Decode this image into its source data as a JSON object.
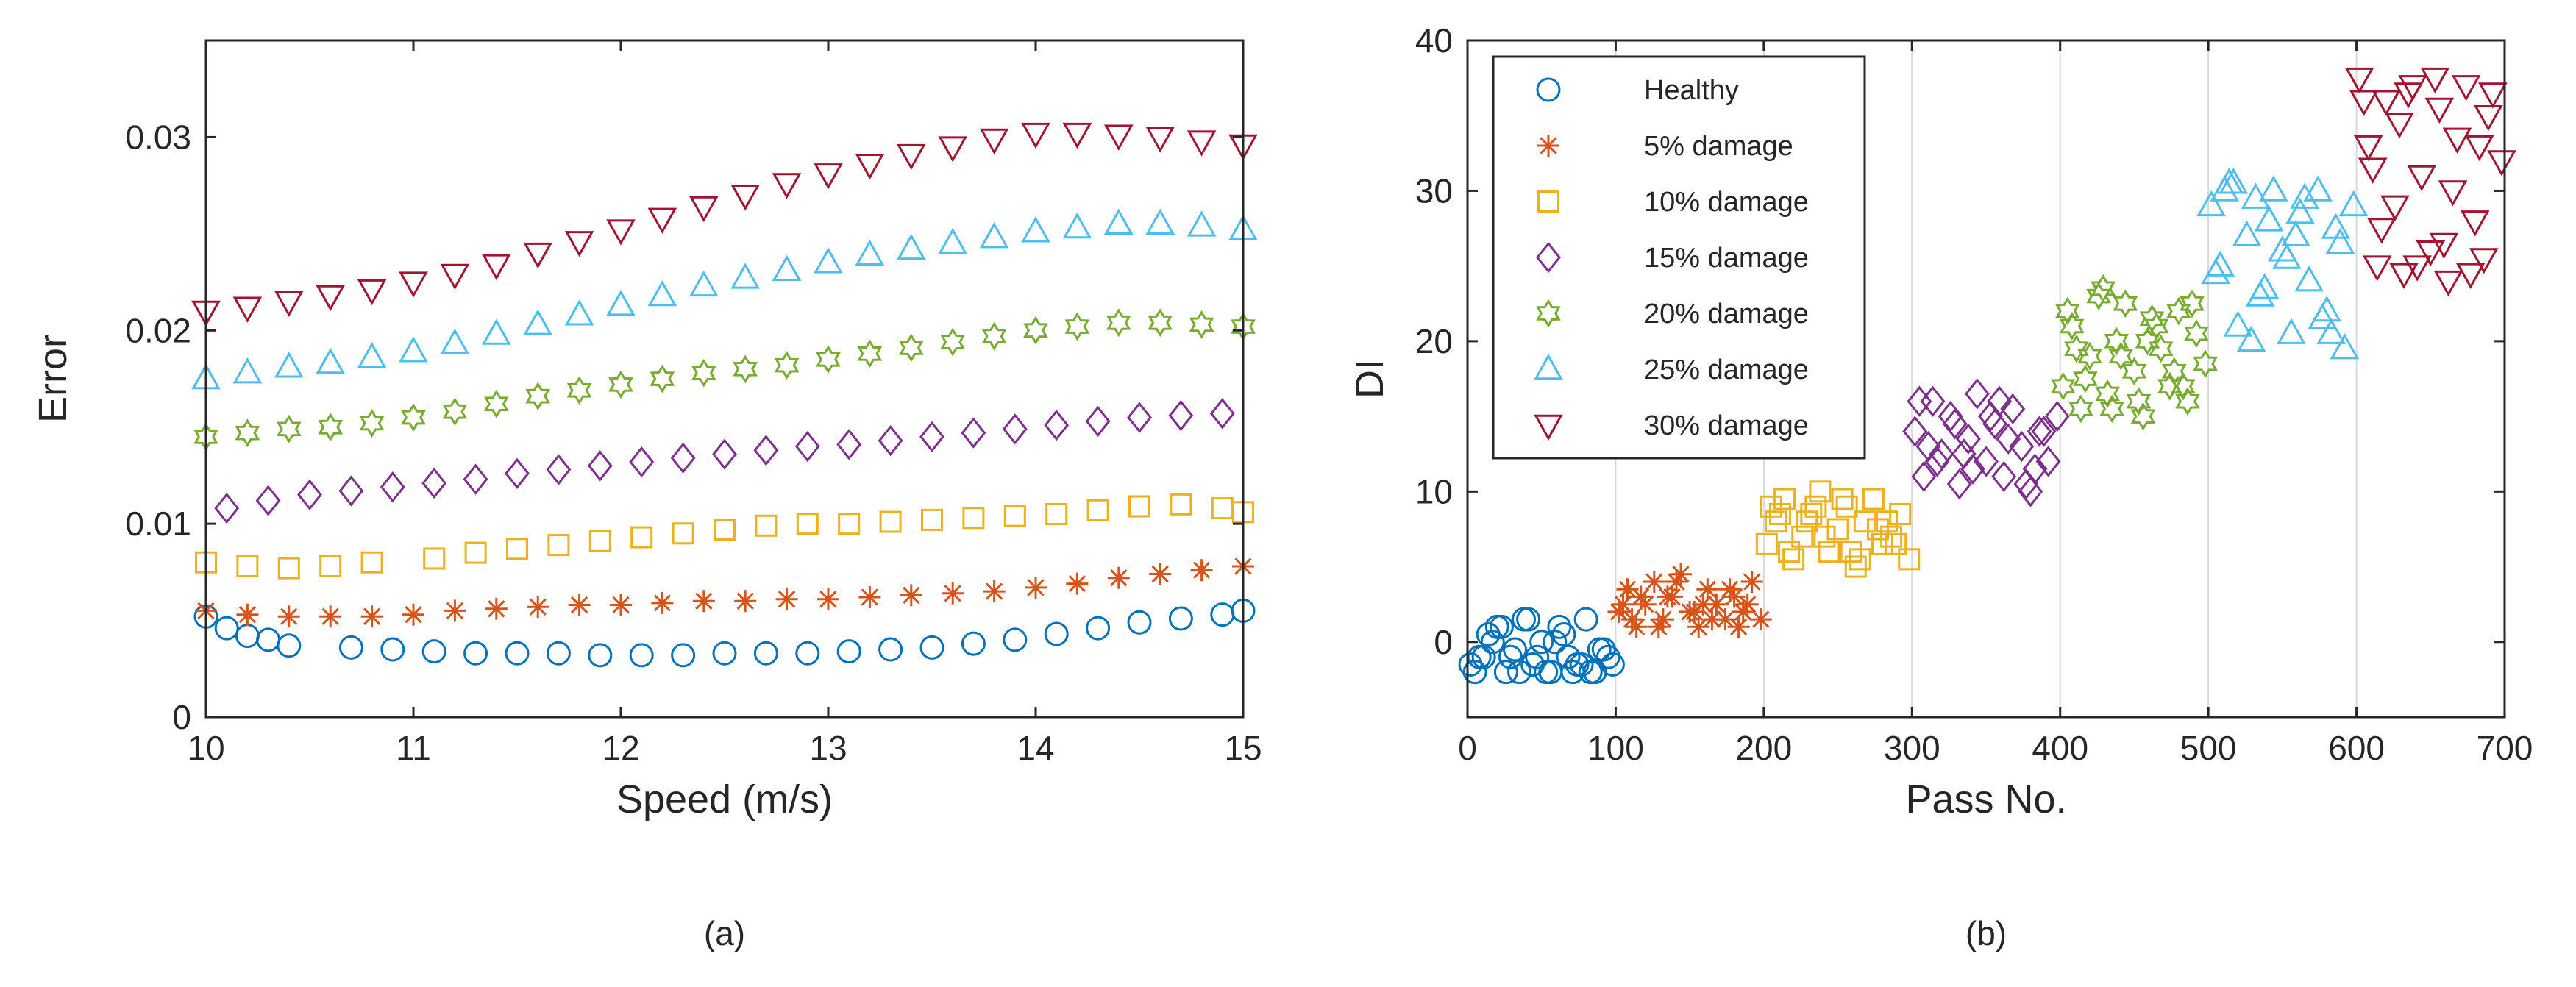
{
  "colors": {
    "healthy": "#0072BD",
    "d5": "#D95319",
    "d10": "#EDB120",
    "d15": "#7E2F8E",
    "d20": "#77AC30",
    "d25": "#4DBEEE",
    "d30": "#A2142F",
    "axis": "#262626",
    "grid": "#d9d9d9"
  },
  "chart_data": [
    {
      "id": "a",
      "type": "scatter",
      "caption": "(a)",
      "xlabel": "Speed (m/s)",
      "ylabel": "Error",
      "xlim": [
        10,
        15
      ],
      "ylim": [
        0,
        0.035
      ],
      "xticks": [
        10,
        11,
        12,
        13,
        14,
        15
      ],
      "xtick_labels": [
        "10",
        "11",
        "12",
        "13",
        "14",
        "15"
      ],
      "yticks": [
        0,
        0.01,
        0.02,
        0.03
      ],
      "ytick_labels": [
        "0",
        "0.01",
        "0.02",
        "0.03"
      ],
      "grid": false,
      "legend": "none",
      "series": [
        {
          "name": "Healthy",
          "marker": "circle",
          "color_key": "healthy",
          "x": [
            10.0,
            10.1,
            10.2,
            10.3,
            10.4,
            10.7,
            10.9,
            11.1,
            11.3,
            11.5,
            11.7,
            11.9,
            12.1,
            12.3,
            12.5,
            12.7,
            12.9,
            13.1,
            13.3,
            13.5,
            13.7,
            13.9,
            14.1,
            14.3,
            14.5,
            14.7,
            14.9,
            15.0
          ],
          "y": [
            0.0052,
            0.0046,
            0.0042,
            0.004,
            0.0037,
            0.0036,
            0.0035,
            0.0034,
            0.0033,
            0.0033,
            0.0033,
            0.0032,
            0.0032,
            0.0032,
            0.0033,
            0.0033,
            0.0033,
            0.0034,
            0.0035,
            0.0036,
            0.0038,
            0.004,
            0.0043,
            0.0046,
            0.0049,
            0.0051,
            0.0053,
            0.0055
          ]
        },
        {
          "name": "5% damage",
          "marker": "asterisk",
          "color_key": "d5",
          "x": [
            10.0,
            10.2,
            10.4,
            10.6,
            10.8,
            11.0,
            11.2,
            11.4,
            11.6,
            11.8,
            12.0,
            12.2,
            12.4,
            12.6,
            12.8,
            13.0,
            13.2,
            13.4,
            13.6,
            13.8,
            14.0,
            14.2,
            14.4,
            14.6,
            14.8,
            15.0
          ],
          "y": [
            0.0055,
            0.0053,
            0.0052,
            0.0052,
            0.0052,
            0.0053,
            0.0055,
            0.0056,
            0.0057,
            0.0058,
            0.0058,
            0.0059,
            0.006,
            0.006,
            0.0061,
            0.0061,
            0.0062,
            0.0063,
            0.0064,
            0.0065,
            0.0067,
            0.0069,
            0.0072,
            0.0074,
            0.0076,
            0.0078
          ]
        },
        {
          "name": "10% damage",
          "marker": "square",
          "color_key": "d10",
          "x": [
            10.0,
            10.2,
            10.4,
            10.6,
            10.8,
            11.1,
            11.3,
            11.5,
            11.7,
            11.9,
            12.1,
            12.3,
            12.5,
            12.7,
            12.9,
            13.1,
            13.3,
            13.5,
            13.7,
            13.9,
            14.1,
            14.3,
            14.5,
            14.7,
            14.9,
            15.0
          ],
          "y": [
            0.008,
            0.0078,
            0.0077,
            0.0078,
            0.008,
            0.0082,
            0.0085,
            0.0087,
            0.0089,
            0.0091,
            0.0093,
            0.0095,
            0.0097,
            0.0099,
            0.01,
            0.01,
            0.0101,
            0.0102,
            0.0103,
            0.0104,
            0.0105,
            0.0107,
            0.0109,
            0.011,
            0.0108,
            0.0106
          ]
        },
        {
          "name": "15% damage",
          "marker": "diamond",
          "color_key": "d15",
          "x": [
            10.1,
            10.3,
            10.5,
            10.7,
            10.9,
            11.1,
            11.3,
            11.5,
            11.7,
            11.9,
            12.1,
            12.3,
            12.5,
            12.7,
            12.9,
            13.1,
            13.3,
            13.5,
            13.7,
            13.9,
            14.1,
            14.3,
            14.5,
            14.7,
            14.9
          ],
          "y": [
            0.0108,
            0.0112,
            0.0115,
            0.0117,
            0.0119,
            0.0121,
            0.0123,
            0.0126,
            0.0128,
            0.013,
            0.0132,
            0.0134,
            0.0136,
            0.0138,
            0.014,
            0.0141,
            0.0143,
            0.0145,
            0.0147,
            0.0149,
            0.0151,
            0.0153,
            0.0155,
            0.0156,
            0.0157
          ]
        },
        {
          "name": "20% damage",
          "marker": "hexagram",
          "color_key": "d20",
          "x": [
            10.0,
            10.2,
            10.4,
            10.6,
            10.8,
            11.0,
            11.2,
            11.4,
            11.6,
            11.8,
            12.0,
            12.2,
            12.4,
            12.6,
            12.8,
            13.0,
            13.2,
            13.4,
            13.6,
            13.8,
            14.0,
            14.2,
            14.4,
            14.6,
            14.8,
            15.0
          ],
          "y": [
            0.0145,
            0.0147,
            0.0149,
            0.015,
            0.0152,
            0.0155,
            0.0158,
            0.0162,
            0.0166,
            0.0169,
            0.0172,
            0.0175,
            0.0178,
            0.018,
            0.0182,
            0.0185,
            0.0188,
            0.0191,
            0.0194,
            0.0197,
            0.02,
            0.0202,
            0.0204,
            0.0204,
            0.0203,
            0.0202
          ]
        },
        {
          "name": "25% damage",
          "marker": "triangle-up",
          "color_key": "d25",
          "x": [
            10.0,
            10.2,
            10.4,
            10.6,
            10.8,
            11.0,
            11.2,
            11.4,
            11.6,
            11.8,
            12.0,
            12.2,
            12.4,
            12.6,
            12.8,
            13.0,
            13.2,
            13.4,
            13.6,
            13.8,
            14.0,
            14.2,
            14.4,
            14.6,
            14.8,
            15.0
          ],
          "y": [
            0.0175,
            0.0178,
            0.0181,
            0.0183,
            0.0186,
            0.0189,
            0.0193,
            0.0198,
            0.0203,
            0.0208,
            0.0213,
            0.0218,
            0.0223,
            0.0227,
            0.0231,
            0.0235,
            0.0239,
            0.0242,
            0.0245,
            0.0248,
            0.0251,
            0.0253,
            0.0255,
            0.0255,
            0.0254,
            0.0252
          ]
        },
        {
          "name": "30% damage",
          "marker": "triangle-down",
          "color_key": "d30",
          "x": [
            10.0,
            10.2,
            10.4,
            10.6,
            10.8,
            11.0,
            11.2,
            11.4,
            11.6,
            11.8,
            12.0,
            12.2,
            12.4,
            12.6,
            12.8,
            13.0,
            13.2,
            13.4,
            13.6,
            13.8,
            14.0,
            14.2,
            14.4,
            14.6,
            14.8,
            15.0
          ],
          "y": [
            0.021,
            0.0212,
            0.0215,
            0.0218,
            0.0221,
            0.0225,
            0.0229,
            0.0234,
            0.024,
            0.0246,
            0.0252,
            0.0258,
            0.0264,
            0.027,
            0.0276,
            0.0281,
            0.0286,
            0.0291,
            0.0295,
            0.0299,
            0.0302,
            0.0302,
            0.0301,
            0.03,
            0.0298,
            0.0296
          ]
        }
      ]
    },
    {
      "id": "b",
      "type": "scatter",
      "caption": "(b)",
      "xlabel": "Pass No.",
      "ylabel": "DI",
      "xlim": [
        0,
        700
      ],
      "ylim": [
        -5,
        40
      ],
      "xticks": [
        0,
        100,
        200,
        300,
        400,
        500,
        600,
        700
      ],
      "xtick_labels": [
        "0",
        "100",
        "200",
        "300",
        "400",
        "500",
        "600",
        "700"
      ],
      "yticks": [
        0,
        10,
        20,
        30,
        40
      ],
      "ytick_labels": [
        "0",
        "10",
        "20",
        "30",
        "40"
      ],
      "grid": "vertical",
      "legend": "top-left",
      "series": [
        {
          "name": "Healthy",
          "marker": "circle",
          "color_key": "healthy",
          "x": [
            2,
            8,
            14,
            20,
            26,
            32,
            38,
            44,
            50,
            56,
            62,
            68,
            74,
            80,
            86,
            92,
            98,
            5,
            17,
            29,
            41,
            53,
            65,
            77,
            89,
            11,
            35,
            59,
            83,
            23,
            47,
            71,
            95
          ],
          "y": [
            -1.5,
            -1.0,
            0.5,
            1.0,
            -2.0,
            -0.5,
            1.5,
            -1.5,
            0.0,
            -2.0,
            1.0,
            -1.0,
            -1.5,
            1.5,
            -2.0,
            -0.5,
            -1.5,
            -2.0,
            0.0,
            -1.0,
            1.5,
            -2.0,
            0.5,
            -1.5,
            -0.5,
            -1.0,
            -2.0,
            0.0,
            -2.0,
            1.0,
            -1.0,
            -2.0,
            -1.0
          ]
        },
        {
          "name": "5% damage",
          "marker": "asterisk",
          "color_key": "d5",
          "x": [
            102,
            108,
            114,
            120,
            126,
            132,
            138,
            144,
            150,
            156,
            162,
            168,
            174,
            180,
            186,
            192,
            198,
            105,
            117,
            129,
            141,
            153,
            165,
            177,
            189,
            111,
            135,
            159,
            183
          ],
          "y": [
            2.0,
            3.5,
            1.0,
            2.5,
            4.0,
            1.5,
            3.0,
            4.5,
            2.0,
            1.0,
            3.5,
            2.5,
            1.5,
            3.0,
            2.0,
            4.0,
            1.5,
            2.5,
            3.0,
            1.0,
            4.0,
            2.0,
            1.5,
            3.5,
            2.5,
            1.5,
            3.0,
            2.5,
            1.0
          ]
        },
        {
          "name": "10% damage",
          "marker": "square",
          "color_key": "d10",
          "x": [
            202,
            208,
            214,
            220,
            226,
            232,
            238,
            244,
            250,
            256,
            262,
            268,
            274,
            280,
            286,
            292,
            298,
            205,
            217,
            229,
            241,
            253,
            265,
            277,
            289,
            211,
            235,
            259,
            283
          ],
          "y": [
            6.5,
            8.0,
            9.5,
            5.5,
            7.0,
            8.5,
            10.0,
            6.0,
            7.5,
            9.0,
            5.0,
            8.0,
            9.5,
            6.5,
            7.0,
            8.5,
            5.5,
            9.0,
            6.0,
            8.0,
            7.0,
            9.5,
            5.5,
            7.5,
            6.5,
            8.5,
            9.0,
            6.0,
            8.0
          ]
        },
        {
          "name": "15% damage",
          "marker": "diamond",
          "color_key": "d15",
          "x": [
            302,
            308,
            314,
            320,
            326,
            332,
            338,
            344,
            350,
            356,
            362,
            368,
            374,
            380,
            386,
            392,
            398,
            305,
            317,
            329,
            341,
            353,
            365,
            377,
            389,
            311,
            335,
            359,
            383
          ],
          "y": [
            14.0,
            11.0,
            16.0,
            12.5,
            15.0,
            10.5,
            13.5,
            16.5,
            12.0,
            14.5,
            11.0,
            15.5,
            13.0,
            10.0,
            14.0,
            12.0,
            15.0,
            16.0,
            12.0,
            14.5,
            11.5,
            15.0,
            13.5,
            10.5,
            14.0,
            13.0,
            12.5,
            16.0,
            11.5
          ]
        },
        {
          "name": "20% damage",
          "marker": "hexagram",
          "color_key": "d20",
          "x": [
            402,
            408,
            414,
            420,
            426,
            432,
            438,
            444,
            450,
            456,
            462,
            468,
            474,
            480,
            486,
            492,
            498,
            405,
            417,
            429,
            441,
            453,
            465,
            477,
            489,
            411,
            435,
            459,
            483
          ],
          "y": [
            17.0,
            21.0,
            15.5,
            19.0,
            23.0,
            16.5,
            20.0,
            22.5,
            18.0,
            15.0,
            21.5,
            19.5,
            17.0,
            22.0,
            16.0,
            20.5,
            18.5,
            22.0,
            17.5,
            23.5,
            19.0,
            16.0,
            21.0,
            18.0,
            22.5,
            19.5,
            15.5,
            20.0,
            17.0
          ]
        },
        {
          "name": "25% damage",
          "marker": "triangle-up",
          "color_key": "d25",
          "x": [
            502,
            508,
            514,
            520,
            526,
            532,
            538,
            544,
            550,
            556,
            562,
            568,
            574,
            580,
            586,
            592,
            598,
            505,
            517,
            529,
            541,
            553,
            565,
            577,
            589,
            511,
            535,
            559,
            583
          ],
          "y": [
            29.0,
            25.0,
            30.5,
            21.0,
            27.0,
            29.5,
            23.5,
            30.0,
            26.0,
            20.5,
            28.5,
            24.0,
            30.0,
            22.0,
            27.5,
            19.5,
            29.0,
            24.5,
            30.5,
            20.0,
            28.0,
            25.5,
            29.5,
            21.5,
            26.5,
            30.0,
            23.0,
            27.0,
            20.5
          ]
        },
        {
          "name": "30% damage",
          "marker": "triangle-down",
          "color_key": "d30",
          "x": [
            602,
            608,
            614,
            620,
            626,
            632,
            638,
            644,
            650,
            656,
            662,
            668,
            674,
            680,
            686,
            692,
            698,
            605,
            617,
            629,
            641,
            653,
            665,
            677,
            689,
            611,
            635,
            659,
            683
          ],
          "y": [
            37.5,
            33.0,
            25.0,
            36.0,
            29.0,
            24.5,
            37.0,
            31.0,
            26.0,
            35.5,
            24.0,
            33.5,
            37.0,
            28.0,
            25.5,
            36.5,
            32.0,
            36.0,
            27.5,
            34.5,
            25.0,
            37.5,
            30.0,
            24.5,
            35.0,
            31.5,
            36.5,
            26.5,
            33.0
          ]
        }
      ]
    }
  ]
}
